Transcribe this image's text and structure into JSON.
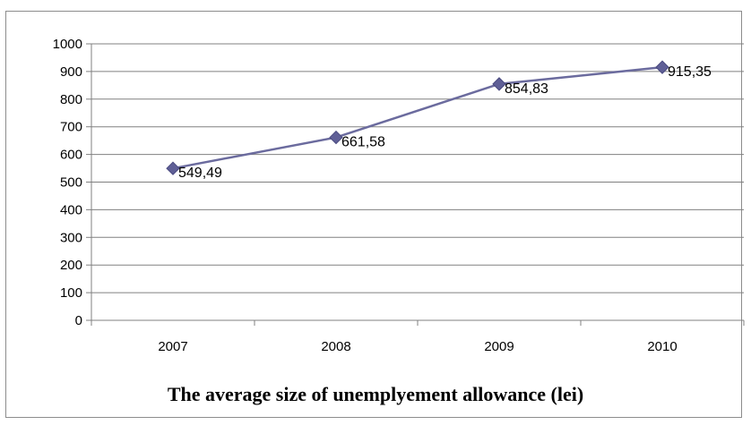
{
  "chart_data": {
    "type": "line",
    "title": "The average size of unemplyement allowance (lei)",
    "xlabel": "",
    "ylabel": "",
    "categories": [
      "2007",
      "2008",
      "2009",
      "2010"
    ],
    "series": [
      {
        "values": [
          549.49,
          661.58,
          854.83,
          915.35
        ],
        "data_labels": [
          "549,49",
          "661,58",
          "854,83",
          "915,35"
        ]
      }
    ],
    "ylim": [
      0,
      1000
    ],
    "y_ticks": [
      "0",
      "100",
      "200",
      "300",
      "400",
      "500",
      "600",
      "700",
      "800",
      "900",
      "1000"
    ],
    "grid": true,
    "legend": "none",
    "colors": {
      "line": "#6b6b9e",
      "marker": "#5f5f96",
      "grid": "#808080",
      "axis": "#808080"
    }
  }
}
